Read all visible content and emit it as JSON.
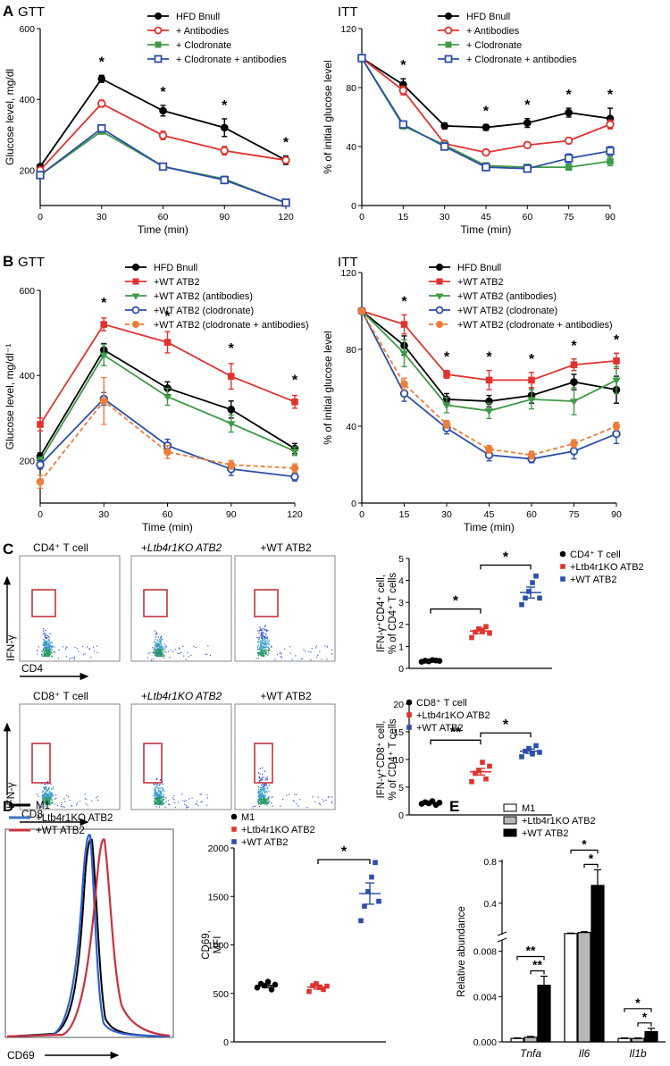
{
  "panel_letters": [
    "A",
    "B",
    "C",
    "D",
    "E"
  ],
  "colors": {
    "black": "#000000",
    "red": "#e0332f",
    "green": "#3f9a47",
    "blue": "#2c4fa8",
    "orange": "#ef7d3a",
    "flow_blue": "#2f5fd0",
    "flow_red": "#c8323c",
    "mid_blue": "#3c73c4"
  },
  "flow": {
    "ifng_label": "IFN-γ",
    "cd4_label": "CD4",
    "cd8_label": "CD8",
    "row1_titles": [
      "CD4⁺ T cell",
      "+Ltb4r1KO ATB2",
      "+WT ATB2"
    ],
    "row2_titles": [
      "CD8⁺ T cell",
      "+Ltb4r1KO ATB2",
      "+WT ATB2"
    ]
  },
  "hist": {
    "xlabel": "CD69",
    "legend": [
      "M1",
      "+Ltb4r1KO ATB2",
      "+WT ATB2"
    ]
  },
  "chart_data": [
    {
      "id": "A-GTT",
      "type": "line",
      "title": "GTT",
      "xlabel": "Time (min)",
      "ylabel": "Glucose level, mg/dl",
      "x": [
        0,
        30,
        60,
        90,
        120
      ],
      "xlim": [
        0,
        120
      ],
      "ylim": [
        100,
        600
      ],
      "xticks": [
        "0",
        "30",
        "60",
        "90",
        "120"
      ],
      "yticks": [
        "200",
        "400",
        "600"
      ],
      "ytick_values": [
        200,
        400,
        600
      ],
      "legend": "top-right",
      "series": [
        {
          "name": "HFD Bnull",
          "color": "black",
          "marker": "circle",
          "values": [
            210,
            458,
            368,
            320,
            228
          ],
          "err": [
            5,
            10,
            15,
            25,
            12
          ]
        },
        {
          "name": "+ Antibodies",
          "color": "red",
          "marker": "open-circle",
          "values": [
            200,
            388,
            298,
            255,
            228
          ],
          "err": [
            5,
            10,
            12,
            12,
            8
          ]
        },
        {
          "name": "+ Clodronate",
          "color": "green",
          "marker": "square",
          "values": [
            186,
            310,
            210,
            175,
            107
          ],
          "err": [
            5,
            8,
            5,
            5,
            3
          ]
        },
        {
          "name": "+ Clodronate + antibodies",
          "color": "blue",
          "marker": "open-square",
          "values": [
            186,
            318,
            210,
            172,
            108
          ],
          "err": [
            5,
            8,
            5,
            5,
            3
          ]
        }
      ],
      "annotations": [
        {
          "x": 30,
          "text": "*"
        },
        {
          "x": 60,
          "text": "*"
        },
        {
          "x": 90,
          "text": "*"
        },
        {
          "x": 120,
          "text": "*"
        }
      ]
    },
    {
      "id": "A-ITT",
      "type": "line",
      "title": "ITT",
      "xlabel": "Time (min)",
      "ylabel": "% of initial glucose level",
      "x": [
        0,
        15,
        30,
        45,
        60,
        75,
        90
      ],
      "xlim": [
        0,
        90
      ],
      "ylim": [
        0,
        120
      ],
      "xticks": [
        "0",
        "15",
        "30",
        "45",
        "60",
        "75",
        "90"
      ],
      "yticks": [
        "0",
        "40",
        "80",
        "120"
      ],
      "ytick_values": [
        0,
        40,
        80,
        120
      ],
      "legend": "top-right",
      "series": [
        {
          "name": "HFD Bnull",
          "color": "black",
          "marker": "circle",
          "values": [
            100,
            82,
            54,
            53,
            56,
            63,
            59
          ],
          "err": [
            0,
            4,
            2,
            2,
            3,
            3,
            7
          ]
        },
        {
          "name": "+ Antibodies",
          "color": "red",
          "marker": "open-circle",
          "values": [
            100,
            78,
            42,
            36,
            41,
            44,
            55
          ],
          "err": [
            0,
            3,
            2,
            2,
            2,
            2,
            3
          ]
        },
        {
          "name": "+ Clodronate",
          "color": "green",
          "marker": "square",
          "values": [
            100,
            54,
            41,
            27,
            26,
            26,
            30
          ],
          "err": [
            0,
            2,
            2,
            2,
            2,
            2,
            3
          ]
        },
        {
          "name": "+ Clodronate + antibodies",
          "color": "blue",
          "marker": "open-square",
          "values": [
            100,
            55,
            40,
            26,
            25,
            32,
            37
          ],
          "err": [
            0,
            2,
            2,
            2,
            2,
            3,
            3
          ]
        }
      ],
      "annotations": [
        {
          "x": 15,
          "text": "*"
        },
        {
          "x": 45,
          "text": "*"
        },
        {
          "x": 60,
          "text": "*"
        },
        {
          "x": 75,
          "text": "*"
        },
        {
          "x": 90,
          "text": "*"
        }
      ]
    },
    {
      "id": "B-GTT",
      "type": "line",
      "title": "GTT",
      "xlabel": "Time (min)",
      "ylabel": "Glucose level, mg/dl⁻¹",
      "x": [
        0,
        30,
        60,
        90,
        120
      ],
      "xlim": [
        0,
        120
      ],
      "ylim": [
        100,
        600
      ],
      "xticks": [
        "0",
        "30",
        "60",
        "90",
        "120"
      ],
      "yticks": [
        "200",
        "400",
        "600"
      ],
      "ytick_values": [
        200,
        400,
        600
      ],
      "legend": "top-right",
      "series": [
        {
          "name": "HFD Bnull",
          "color": "black",
          "marker": "circle",
          "values": [
            210,
            460,
            370,
            320,
            228
          ],
          "err": [
            8,
            15,
            15,
            20,
            12
          ]
        },
        {
          "name": "+WT ATB2",
          "color": "red",
          "marker": "square",
          "values": [
            285,
            520,
            478,
            398,
            338
          ],
          "err": [
            15,
            15,
            25,
            30,
            15
          ]
        },
        {
          "name": "+WT ATB2 (antibodies)",
          "color": "green",
          "marker": "triangle-down",
          "values": [
            200,
            448,
            350,
            287,
            222
          ],
          "err": [
            8,
            25,
            20,
            20,
            10
          ]
        },
        {
          "name": "+WT ATB2 (clodronate)",
          "color": "blue",
          "marker": "open-circle",
          "values": [
            190,
            345,
            235,
            180,
            162
          ],
          "err": [
            10,
            15,
            15,
            15,
            10
          ]
        },
        {
          "name": "+WT ATB2 (clodronate + antibodies)",
          "color": "orange",
          "marker": "circle",
          "dashed": true,
          "values": [
            150,
            340,
            220,
            190,
            182
          ],
          "err": [
            15,
            55,
            15,
            10,
            10
          ]
        }
      ],
      "annotations": [
        {
          "x": 30,
          "text": "*"
        },
        {
          "x": 60,
          "text": "*"
        },
        {
          "x": 90,
          "text": "*"
        },
        {
          "x": 120,
          "text": "*"
        }
      ]
    },
    {
      "id": "B-ITT",
      "type": "line",
      "title": "ITT",
      "xlabel": "Time (min)",
      "ylabel": "% of initial glucose level",
      "x": [
        0,
        15,
        30,
        45,
        60,
        75,
        90
      ],
      "xlim": [
        0,
        90
      ],
      "ylim": [
        0,
        120
      ],
      "xticks": [
        "0",
        "15",
        "30",
        "45",
        "60",
        "75",
        "90"
      ],
      "yticks": [
        "0",
        "40",
        "80",
        "120"
      ],
      "ytick_values": [
        0,
        40,
        80,
        120
      ],
      "legend": "top-right",
      "series": [
        {
          "name": "HFD Bnull",
          "color": "black",
          "marker": "circle",
          "values": [
            100,
            82,
            54,
            53,
            56,
            63,
            59
          ],
          "err": [
            0,
            5,
            3,
            3,
            4,
            4,
            7
          ]
        },
        {
          "name": "+WT ATB2",
          "color": "red",
          "marker": "square",
          "values": [
            100,
            93,
            67,
            64,
            64,
            72,
            74
          ],
          "err": [
            0,
            5,
            2,
            5,
            4,
            3,
            4
          ]
        },
        {
          "name": "+WT ATB2 (antibodies)",
          "color": "green",
          "marker": "triangle-down",
          "values": [
            100,
            78,
            51,
            48,
            54,
            53,
            64
          ],
          "err": [
            0,
            7,
            4,
            4,
            5,
            7,
            7
          ]
        },
        {
          "name": "+WT ATB2 (clodronate)",
          "color": "blue",
          "marker": "open-circle",
          "values": [
            100,
            57,
            39,
            25,
            23,
            27,
            36
          ],
          "err": [
            0,
            4,
            3,
            3,
            2,
            4,
            5
          ]
        },
        {
          "name": "+WT ATB2 (clodronate + antibodies)",
          "color": "orange",
          "marker": "circle",
          "dashed": true,
          "values": [
            100,
            62,
            41,
            28,
            25,
            31,
            40
          ],
          "err": [
            0,
            3,
            2,
            2,
            2,
            2,
            2
          ]
        }
      ],
      "annotations": [
        {
          "x": 15,
          "text": "*"
        },
        {
          "x": 30,
          "text": "*"
        },
        {
          "x": 45,
          "text": "*"
        },
        {
          "x": 60,
          "text": "*"
        },
        {
          "x": 75,
          "text": "*"
        },
        {
          "x": 90,
          "text": "*"
        }
      ]
    },
    {
      "id": "C-CD4",
      "type": "scatter",
      "ylabel": "IFN-γ⁺CD4⁺ cell, % of CD4⁺ T cells",
      "categories": [
        "CD4⁺ T cell",
        "+Ltb4r1KO ATB2",
        "+WT ATB2"
      ],
      "ylim": [
        0,
        5
      ],
      "yticks": [
        "0",
        "1",
        "2",
        "3",
        "4",
        "5"
      ],
      "ytick_values": [
        0,
        1,
        2,
        3,
        4,
        5
      ],
      "series": [
        {
          "name": "CD4⁺ T cell",
          "color": "black",
          "marker": "circle",
          "values": [
            0.3,
            0.35,
            0.32,
            0.38,
            0.36,
            0.34
          ],
          "mean": 0.34,
          "sem": 0.03
        },
        {
          "name": "+Ltb4r1KO ATB2",
          "color": "red",
          "marker": "square",
          "values": [
            1.4,
            1.65,
            1.8,
            1.7,
            1.9,
            1.6
          ],
          "mean": 1.7,
          "sem": 0.12
        },
        {
          "name": "+WT ATB2",
          "color": "blue",
          "marker": "square",
          "values": [
            2.9,
            3.2,
            3.5,
            3.9,
            4.2,
            3.2
          ],
          "mean": 3.45,
          "sem": 0.25
        }
      ],
      "comparisons": [
        {
          "from": 0,
          "to": 1,
          "y": 2.7,
          "text": "*"
        },
        {
          "from": 1,
          "to": 2,
          "y": 4.7,
          "text": "*"
        }
      ]
    },
    {
      "id": "C-CD8",
      "type": "scatter",
      "ylabel": "IFN-γ⁺CD8⁺ cell, % of CD4⁺ T cells",
      "categories": [
        "CD8⁺ T cell",
        "+Ltb4r1KO ATB2",
        "+WT ATB2"
      ],
      "ylim": [
        0,
        20
      ],
      "yticks": [
        "0",
        "5",
        "10",
        "15",
        "20"
      ],
      "ytick_values": [
        0,
        5,
        10,
        15,
        20
      ],
      "series": [
        {
          "name": "CD8⁺ T cell",
          "color": "black",
          "marker": "circle",
          "values": [
            2.0,
            2.3,
            2.1,
            2.5,
            1.8,
            2.2
          ],
          "mean": 2.2,
          "sem": 0.2
        },
        {
          "name": "+Ltb4r1KO ATB2",
          "color": "red",
          "marker": "square",
          "values": [
            6.0,
            7.5,
            8.0,
            9.5,
            6.5,
            8.8
          ],
          "mean": 7.8,
          "sem": 0.6
        },
        {
          "name": "+WT ATB2",
          "color": "blue",
          "marker": "square",
          "values": [
            10.5,
            11.5,
            12.0,
            11.0,
            12.5,
            11.3
          ],
          "mean": 11.5,
          "sem": 0.4
        }
      ],
      "comparisons": [
        {
          "from": 0,
          "to": 1,
          "y": 13.5,
          "text": "**"
        },
        {
          "from": 1,
          "to": 2,
          "y": 14.8,
          "text": "*"
        }
      ]
    },
    {
      "id": "D-CD69",
      "type": "scatter",
      "ylabel": "CD69, MFI",
      "categories": [
        "M1",
        "+Ltb4r1KO ATB2",
        "+WT ATB2"
      ],
      "ylim": [
        0,
        2000
      ],
      "yticks": [
        "0",
        "500",
        "1000",
        "1500",
        "2000"
      ],
      "ytick_values": [
        0,
        500,
        1000,
        1500,
        2000
      ],
      "series": [
        {
          "name": "M1",
          "color": "black",
          "marker": "circle",
          "values": [
            560,
            600,
            580,
            620,
            540,
            590
          ],
          "mean": 580,
          "sem": 20
        },
        {
          "name": "+Ltb4r1KO ATB2",
          "color": "red",
          "marker": "square",
          "values": [
            520,
            580,
            600,
            560,
            540,
            575
          ],
          "mean": 565,
          "sem": 20
        },
        {
          "name": "+WT ATB2",
          "color": "blue",
          "marker": "square",
          "values": [
            1250,
            1400,
            1550,
            1700,
            1850,
            1450
          ],
          "mean": 1530,
          "sem": 110
        }
      ],
      "comparisons": [
        {
          "from": 1,
          "to": 2,
          "y": 1880,
          "text": "*"
        }
      ]
    },
    {
      "id": "E",
      "type": "bar",
      "ylabel": "Relative abundance",
      "categories": [
        "Tnfa",
        "Il6",
        "Il1b"
      ],
      "upper_ticks": [
        "0.4",
        "0.8"
      ],
      "lower_ticks": [
        "0.000",
        "0.004",
        "0.008"
      ],
      "series": [
        {
          "name": "M1",
          "color": "white",
          "values": [
            0.0003,
            0.11,
            0.0003
          ],
          "err": [
            5e-05,
            0.005,
            5e-05
          ]
        },
        {
          "name": "+Ltb4r1KO ATB2",
          "color": "gray",
          "values": [
            0.0004,
            0.12,
            0.0003
          ],
          "err": [
            8e-05,
            0.008,
            5e-05
          ]
        },
        {
          "name": "+WT ATB2",
          "color": "black",
          "values": [
            0.005,
            0.57,
            0.0009
          ],
          "err": [
            0.0008,
            0.15,
            0.0003
          ]
        }
      ],
      "comparisons": [
        {
          "cat": 0,
          "from": 0,
          "to": 2,
          "label": "**",
          "level": 2
        },
        {
          "cat": 0,
          "from": 1,
          "to": 2,
          "label": "**",
          "level": 1
        },
        {
          "cat": 1,
          "from": 0,
          "to": 2,
          "label": "*",
          "level": 2
        },
        {
          "cat": 1,
          "from": 1,
          "to": 2,
          "label": "*",
          "level": 1
        },
        {
          "cat": 2,
          "from": 0,
          "to": 2,
          "label": "*",
          "level": 2
        },
        {
          "cat": 2,
          "from": 1,
          "to": 2,
          "label": "*",
          "level": 1
        }
      ]
    }
  ]
}
